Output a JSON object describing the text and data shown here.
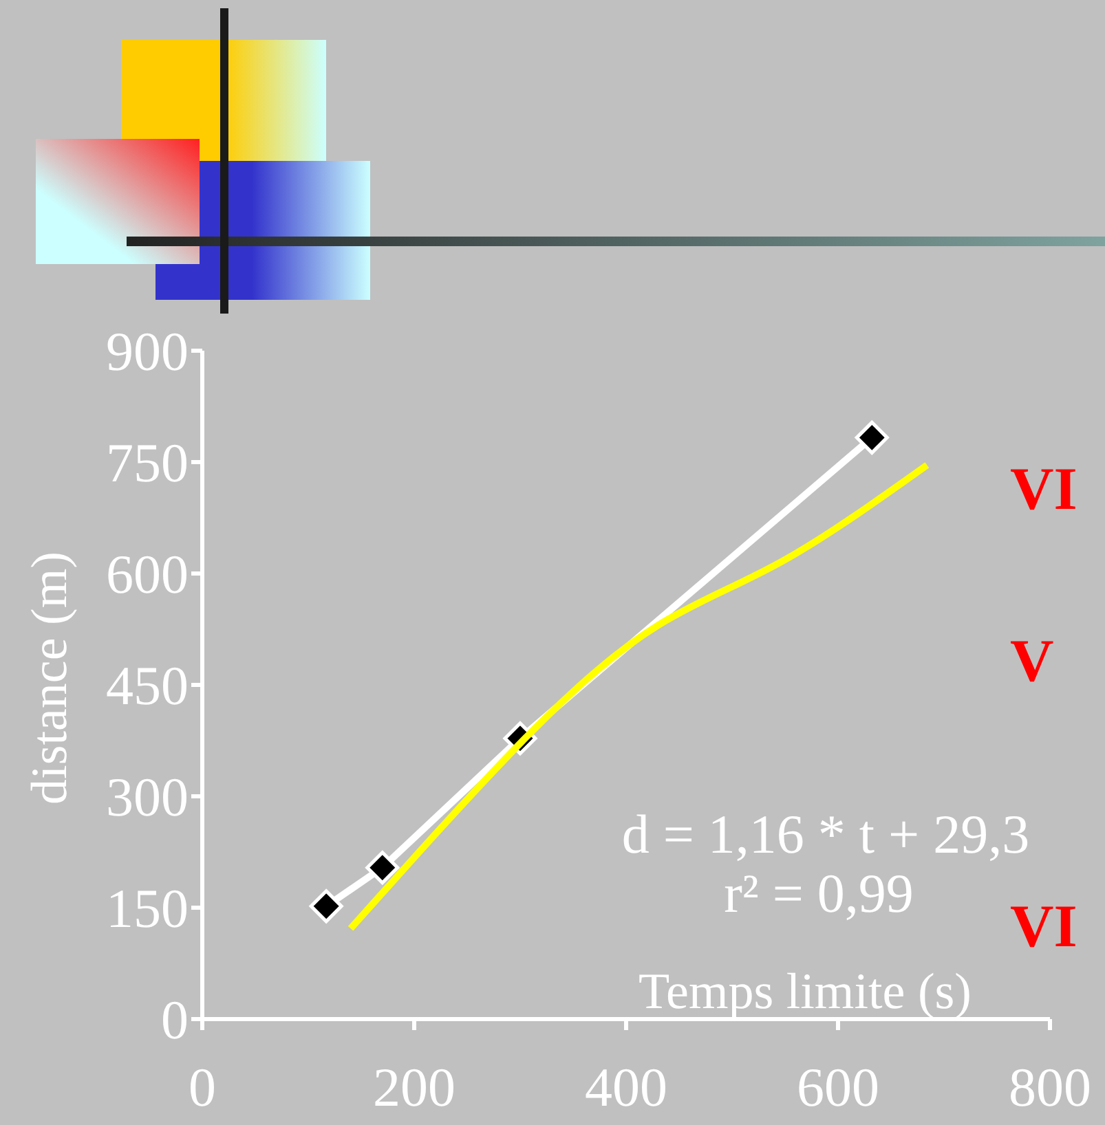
{
  "chart_data": {
    "type": "line",
    "xlabel": "Temps limite (s)",
    "ylabel": "distance (m)",
    "xlim": [
      0,
      800
    ],
    "xticks": [
      0,
      200,
      400,
      600,
      800
    ],
    "ylim": [
      0,
      900
    ],
    "yticks": [
      0,
      150,
      300,
      450,
      600,
      750,
      900
    ],
    "grid": false,
    "series": [
      {
        "color": "#ffffff",
        "marker": "diamond",
        "x": [
          117,
          170,
          300,
          632
        ],
        "values": [
          152,
          204,
          378,
          783
        ]
      },
      {
        "color": "#ffff00",
        "marker": "none",
        "x": [
          140,
          306,
          431,
          548,
          684
        ],
        "values": [
          122,
          380,
          531,
          617,
          746
        ]
      }
    ],
    "annotations": [
      "d = 1,16 * t + 29,3",
      "r² = 0,99",
      "VI",
      "V",
      "VI"
    ]
  }
}
